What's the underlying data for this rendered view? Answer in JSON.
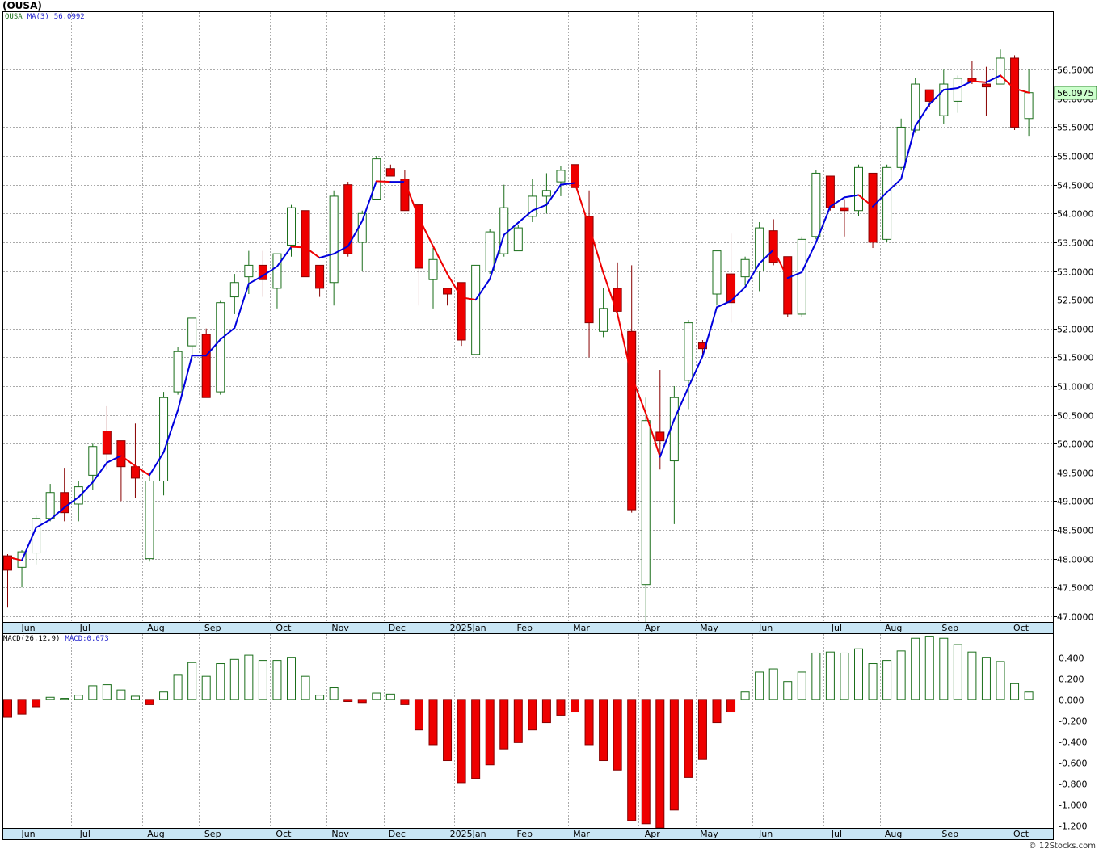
{
  "header": {
    "symbol_title": "(OUSA)",
    "legend_symbol": "OUSA",
    "legend_ma_label": "MA(3)",
    "legend_ma_value": "56.0992",
    "macd_label": "MACD(26,12,9)",
    "macd_value": "MACD:0.073"
  },
  "watermark": "© 12Stocks.com",
  "chart_data": [
    {
      "type": "candlestick",
      "name": "price",
      "last_price_label": "56.0975",
      "ylim": [
        46.9,
        57.5
      ],
      "y_ticks": [
        "47.0000",
        "47.5000",
        "48.0000",
        "48.5000",
        "49.0000",
        "49.5000",
        "50.0000",
        "50.5000",
        "51.0000",
        "51.5000",
        "52.0000",
        "52.5000",
        "53.0000",
        "53.5000",
        "54.0000",
        "54.5000",
        "55.0000",
        "55.5000",
        "56.0000",
        "56.5000"
      ],
      "x_ticks": [
        {
          "label": "Jun",
          "i": 1
        },
        {
          "label": "Jul",
          "i": 5
        },
        {
          "label": "Aug",
          "i": 10
        },
        {
          "label": "Sep",
          "i": 14
        },
        {
          "label": "Oct",
          "i": 19
        },
        {
          "label": "Nov",
          "i": 23
        },
        {
          "label": "Dec",
          "i": 27
        },
        {
          "label": "2025Jan",
          "i": 32
        },
        {
          "label": "Feb",
          "i": 36
        },
        {
          "label": "Mar",
          "i": 40
        },
        {
          "label": "Apr",
          "i": 45
        },
        {
          "label": "May",
          "i": 49
        },
        {
          "label": "Jun",
          "i": 53
        },
        {
          "label": "Jul",
          "i": 58
        },
        {
          "label": "Aug",
          "i": 62
        },
        {
          "label": "Sep",
          "i": 66
        },
        {
          "label": "Oct",
          "i": 71
        }
      ],
      "grid": true,
      "ma_colors": {
        "up": "#0000dd",
        "down": "#ee0000"
      },
      "candles": [
        [
          48.05,
          48.08,
          47.15,
          47.8
        ],
        [
          47.85,
          48.15,
          47.5,
          48.12
        ],
        [
          48.1,
          48.75,
          47.9,
          48.7
        ],
        [
          48.7,
          49.3,
          48.65,
          49.15
        ],
        [
          49.15,
          49.58,
          48.65,
          48.8
        ],
        [
          48.95,
          49.35,
          48.65,
          49.25
        ],
        [
          49.45,
          50.0,
          49.2,
          49.95
        ],
        [
          50.22,
          50.65,
          49.55,
          49.82
        ],
        [
          50.05,
          50.05,
          49.0,
          49.6
        ],
        [
          49.6,
          50.35,
          49.05,
          49.4
        ],
        [
          48.0,
          49.5,
          47.95,
          49.35
        ],
        [
          49.35,
          50.9,
          49.1,
          50.8
        ],
        [
          50.9,
          51.68,
          50.85,
          51.6
        ],
        [
          51.7,
          52.18,
          51.45,
          52.18
        ],
        [
          51.9,
          52.0,
          50.8,
          50.8
        ],
        [
          50.9,
          52.48,
          50.85,
          52.45
        ],
        [
          52.55,
          52.95,
          52.25,
          52.8
        ],
        [
          52.9,
          53.35,
          52.6,
          53.1
        ],
        [
          53.1,
          53.35,
          52.55,
          52.85
        ],
        [
          52.7,
          53.3,
          52.35,
          53.3
        ],
        [
          53.45,
          54.15,
          53.25,
          54.1
        ],
        [
          54.05,
          54.05,
          52.9,
          52.9
        ],
        [
          53.1,
          53.1,
          52.55,
          52.7
        ],
        [
          52.8,
          54.4,
          52.4,
          54.3
        ],
        [
          54.5,
          54.55,
          53.25,
          53.3
        ],
        [
          53.5,
          54.05,
          53.0,
          54.0
        ],
        [
          54.25,
          55.0,
          54.25,
          54.95
        ],
        [
          54.78,
          54.85,
          54.65,
          54.65
        ],
        [
          54.6,
          54.75,
          54.05,
          54.05
        ],
        [
          54.15,
          54.15,
          52.4,
          53.05
        ],
        [
          52.85,
          53.4,
          52.35,
          53.2
        ],
        [
          52.7,
          52.7,
          52.4,
          52.6
        ],
        [
          52.8,
          52.8,
          51.7,
          51.8
        ],
        [
          51.55,
          53.1,
          51.55,
          53.1
        ],
        [
          53.0,
          53.73,
          52.95,
          53.68
        ],
        [
          53.3,
          54.5,
          53.25,
          54.1
        ],
        [
          53.35,
          53.8,
          53.35,
          53.75
        ],
        [
          53.95,
          54.6,
          53.85,
          54.3
        ],
        [
          54.3,
          54.7,
          54.0,
          54.4
        ],
        [
          54.55,
          54.82,
          54.3,
          54.75
        ],
        [
          54.85,
          55.1,
          53.7,
          54.45
        ],
        [
          53.95,
          54.4,
          51.5,
          52.1
        ],
        [
          51.95,
          52.7,
          51.85,
          52.35
        ],
        [
          52.7,
          53.15,
          52.25,
          52.3
        ],
        [
          51.95,
          53.1,
          48.8,
          48.85
        ],
        [
          47.55,
          50.8,
          46.9,
          50.4
        ],
        [
          50.2,
          51.28,
          49.55,
          50.05
        ],
        [
          49.7,
          51.0,
          48.6,
          50.8
        ],
        [
          51.1,
          52.15,
          50.6,
          52.1
        ],
        [
          51.75,
          51.8,
          51.55,
          51.65
        ],
        [
          52.6,
          53.35,
          52.4,
          53.35
        ],
        [
          52.95,
          53.65,
          52.1,
          52.45
        ],
        [
          52.9,
          53.25,
          52.75,
          53.2
        ],
        [
          53.0,
          53.85,
          52.65,
          53.75
        ],
        [
          53.7,
          53.9,
          53.1,
          53.15
        ],
        [
          53.25,
          53.25,
          52.2,
          52.25
        ],
        [
          52.25,
          53.6,
          52.2,
          53.55
        ],
        [
          53.6,
          54.75,
          53.55,
          54.7
        ],
        [
          54.65,
          54.65,
          54.05,
          54.1
        ],
        [
          54.1,
          54.25,
          53.6,
          54.05
        ],
        [
          54.05,
          54.85,
          53.95,
          54.8
        ],
        [
          54.7,
          54.7,
          53.4,
          53.5
        ],
        [
          53.55,
          54.85,
          53.5,
          54.8
        ],
        [
          54.8,
          55.65,
          54.75,
          55.5
        ],
        [
          55.45,
          56.35,
          55.4,
          56.25
        ],
        [
          56.15,
          56.15,
          55.85,
          55.95
        ],
        [
          55.7,
          56.5,
          55.55,
          56.25
        ],
        [
          55.95,
          56.4,
          55.75,
          56.35
        ],
        [
          56.35,
          56.65,
          56.25,
          56.3
        ],
        [
          56.25,
          56.55,
          55.7,
          56.2
        ],
        [
          56.25,
          56.85,
          56.25,
          56.7
        ],
        [
          56.7,
          56.75,
          55.45,
          55.5
        ],
        [
          55.65,
          56.5,
          55.35,
          56.1
        ]
      ],
      "ma3": [
        48.03,
        47.97,
        48.54,
        48.68,
        48.89,
        49.07,
        49.33,
        49.67,
        49.79,
        49.61,
        49.45,
        49.85,
        50.58,
        51.53,
        51.53,
        51.81,
        52.01,
        52.78,
        52.92,
        53.08,
        53.42,
        53.41,
        53.23,
        53.3,
        53.43,
        53.87,
        54.56,
        54.55,
        54.55,
        53.92,
        53.43,
        52.95,
        52.54,
        52.5,
        52.86,
        53.63,
        53.84,
        54.05,
        54.15,
        54.5,
        54.53,
        53.77,
        52.97,
        52.25,
        51.17,
        50.52,
        49.77,
        50.42,
        50.98,
        51.52,
        52.37,
        52.48,
        52.72,
        53.13,
        53.37,
        52.88,
        52.98,
        53.5,
        54.12,
        54.28,
        54.32,
        54.12,
        54.37,
        54.6,
        55.52,
        55.9,
        56.15,
        56.18,
        56.3,
        56.28,
        56.4,
        56.17,
        56.1
      ]
    },
    {
      "type": "bar",
      "name": "macd",
      "ylim": [
        -1.22,
        0.62
      ],
      "y_ticks": [
        "-1.200",
        "-1.000",
        "-0.800",
        "-0.600",
        "-0.400",
        "-0.200",
        "0.000",
        "0.200",
        "0.400"
      ],
      "values": [
        -0.17,
        -0.14,
        -0.07,
        0.02,
        0.01,
        0.04,
        0.13,
        0.14,
        0.09,
        0.03,
        -0.05,
        0.07,
        0.23,
        0.35,
        0.22,
        0.34,
        0.38,
        0.42,
        0.37,
        0.37,
        0.4,
        0.22,
        0.04,
        0.11,
        -0.02,
        -0.03,
        0.06,
        0.05,
        -0.05,
        -0.29,
        -0.43,
        -0.58,
        -0.79,
        -0.75,
        -0.62,
        -0.47,
        -0.41,
        -0.29,
        -0.22,
        -0.15,
        -0.12,
        -0.43,
        -0.58,
        -0.67,
        -1.15,
        -1.18,
        -1.22,
        -1.05,
        -0.74,
        -0.57,
        -0.22,
        -0.12,
        0.07,
        0.26,
        0.29,
        0.17,
        0.26,
        0.44,
        0.45,
        0.44,
        0.48,
        0.34,
        0.37,
        0.46,
        0.58,
        0.6,
        0.58,
        0.52,
        0.45,
        0.4,
        0.36,
        0.15,
        0.07
      ],
      "up_color": "#ffffff",
      "up_border": "#1a6e1a",
      "down_color": "#ee0000",
      "down_border": "#880000"
    }
  ]
}
